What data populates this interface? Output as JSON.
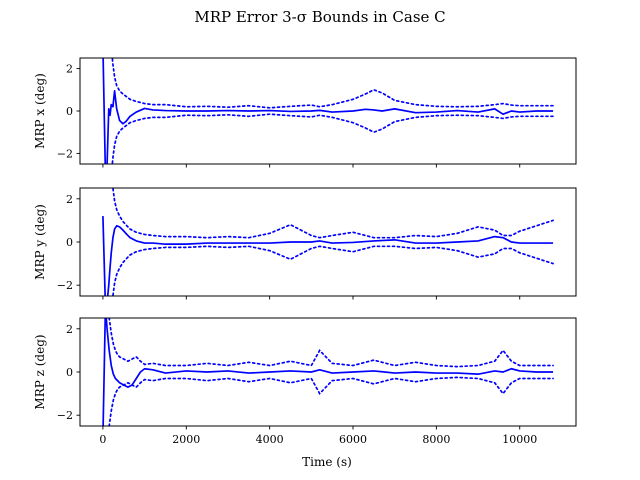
{
  "figure": {
    "title": "MRP Error 3-σ Bounds in Case C",
    "xlabel": "Time (s)",
    "line_color": "#0000ff"
  },
  "chart_data": [
    {
      "type": "line",
      "ylabel": "MRP x (deg)",
      "xlim": [
        -550,
        11350
      ],
      "ylim": [
        -2.5,
        2.5
      ],
      "xticks": [
        0,
        2000,
        4000,
        6000,
        8000,
        10000
      ],
      "yticks": [
        -2,
        0,
        2
      ],
      "grid": false,
      "x": [
        0,
        60,
        100,
        140,
        170,
        200,
        240,
        280,
        330,
        400,
        480,
        550,
        650,
        800,
        1000,
        1200,
        1500,
        2000,
        2500,
        3000,
        3500,
        4000,
        4500,
        5000,
        5200,
        5500,
        6000,
        6300,
        6500,
        6700,
        7000,
        7500,
        8000,
        8500,
        9000,
        9400,
        9600,
        9800,
        10000,
        10400,
        10800
      ],
      "series": [
        {
          "values": [
            3.0,
            -3.0,
            -2.5,
            0.1,
            -0.2,
            0.3,
            0.2,
            0.95,
            0.1,
            -0.45,
            -0.6,
            -0.5,
            -0.25,
            -0.05,
            0.12,
            0.05,
            0.02,
            0.0,
            0.0,
            0.02,
            0.0,
            0.02,
            -0.02,
            0.0,
            0.03,
            -0.05,
            0.0,
            0.08,
            0.05,
            0.0,
            0.1,
            -0.08,
            -0.05,
            0.02,
            -0.05,
            0.1,
            -0.15,
            0.0,
            -0.05,
            0.0,
            0.0
          ]
        },
        {
          "values": [
            3.0,
            3.0,
            3.0,
            3.0,
            3.0,
            3.0,
            2.2,
            1.6,
            1.2,
            0.95,
            0.8,
            0.7,
            0.55,
            0.45,
            0.35,
            0.3,
            0.3,
            0.2,
            0.22,
            0.18,
            0.25,
            0.15,
            0.22,
            0.28,
            0.2,
            0.3,
            0.55,
            0.8,
            1.0,
            0.85,
            0.5,
            0.3,
            0.22,
            0.2,
            0.22,
            0.3,
            0.35,
            0.28,
            0.25,
            0.25,
            0.25
          ]
        },
        {
          "values": [
            -3.0,
            -3.0,
            -3.0,
            -3.0,
            -3.0,
            -3.0,
            -2.2,
            -1.6,
            -1.2,
            -0.95,
            -0.8,
            -0.7,
            -0.55,
            -0.45,
            -0.35,
            -0.3,
            -0.3,
            -0.2,
            -0.22,
            -0.18,
            -0.25,
            -0.15,
            -0.22,
            -0.28,
            -0.2,
            -0.3,
            -0.55,
            -0.8,
            -1.0,
            -0.85,
            -0.5,
            -0.3,
            -0.22,
            -0.2,
            -0.22,
            -0.3,
            -0.35,
            -0.28,
            -0.25,
            -0.25,
            -0.25
          ]
        }
      ]
    },
    {
      "type": "line",
      "ylabel": "MRP y (deg)",
      "xlim": [
        -550,
        11350
      ],
      "ylim": [
        -2.5,
        2.5
      ],
      "xticks": [
        0,
        2000,
        4000,
        6000,
        8000,
        10000
      ],
      "yticks": [
        -2,
        0,
        2
      ],
      "grid": false,
      "x": [
        0,
        60,
        100,
        140,
        170,
        200,
        240,
        280,
        330,
        400,
        480,
        550,
        650,
        800,
        1000,
        1200,
        1500,
        2000,
        2500,
        3000,
        3500,
        4000,
        4500,
        5000,
        5200,
        5500,
        6000,
        6500,
        7000,
        7500,
        8000,
        8500,
        9000,
        9400,
        9600,
        9800,
        10000,
        10400,
        10800
      ],
      "series": [
        {
          "values": [
            1.2,
            -3.0,
            -2.8,
            -2.0,
            -1.2,
            -0.5,
            0.2,
            0.6,
            0.75,
            0.7,
            0.55,
            0.4,
            0.2,
            0.05,
            -0.05,
            -0.05,
            -0.1,
            -0.1,
            -0.05,
            -0.05,
            -0.05,
            -0.05,
            0.0,
            0.0,
            0.05,
            -0.05,
            -0.02,
            0.05,
            0.1,
            -0.05,
            -0.05,
            0.0,
            0.05,
            0.25,
            0.2,
            0.0,
            -0.05,
            -0.05,
            -0.05
          ]
        },
        {
          "values": [
            3.0,
            3.0,
            3.0,
            3.0,
            3.0,
            3.0,
            2.5,
            1.9,
            1.5,
            1.2,
            0.95,
            0.8,
            0.6,
            0.45,
            0.35,
            0.3,
            0.25,
            0.25,
            0.2,
            0.25,
            0.2,
            0.4,
            0.8,
            0.3,
            0.2,
            0.3,
            0.45,
            0.2,
            0.2,
            0.3,
            0.25,
            0.4,
            0.7,
            0.55,
            0.3,
            0.3,
            0.5,
            0.75,
            1.0
          ]
        },
        {
          "values": [
            -3.0,
            -3.0,
            -3.0,
            -3.0,
            -3.0,
            -3.0,
            -2.5,
            -1.9,
            -1.5,
            -1.2,
            -0.95,
            -0.8,
            -0.6,
            -0.45,
            -0.35,
            -0.3,
            -0.25,
            -0.25,
            -0.2,
            -0.25,
            -0.2,
            -0.4,
            -0.8,
            -0.3,
            -0.2,
            -0.3,
            -0.45,
            -0.2,
            -0.2,
            -0.3,
            -0.25,
            -0.4,
            -0.7,
            -0.55,
            -0.3,
            -0.3,
            -0.5,
            -0.75,
            -1.0
          ]
        }
      ]
    },
    {
      "type": "line",
      "ylabel": "MRP z (deg)",
      "xlim": [
        -550,
        11350
      ],
      "ylim": [
        -2.5,
        2.5
      ],
      "xticks": [
        0,
        2000,
        4000,
        6000,
        8000,
        10000
      ],
      "yticks": [
        -2,
        0,
        2
      ],
      "grid": false,
      "x": [
        0,
        60,
        100,
        150,
        200,
        250,
        300,
        350,
        400,
        500,
        600,
        700,
        800,
        900,
        1000,
        1200,
        1500,
        2000,
        2500,
        3000,
        3500,
        4000,
        4500,
        5000,
        5200,
        5500,
        6000,
        6500,
        7000,
        7500,
        8000,
        8500,
        9000,
        9400,
        9600,
        9800,
        10000,
        10400,
        10800
      ],
      "series": [
        {
          "values": [
            -3.0,
            3.0,
            2.0,
            1.0,
            0.3,
            -0.1,
            -0.3,
            -0.4,
            -0.5,
            -0.6,
            -0.7,
            -0.6,
            -0.3,
            0.0,
            0.15,
            0.1,
            -0.05,
            0.05,
            0.0,
            0.05,
            -0.05,
            0.0,
            0.05,
            0.0,
            0.1,
            -0.05,
            0.0,
            0.05,
            -0.05,
            0.0,
            -0.05,
            -0.05,
            -0.1,
            0.05,
            0.0,
            0.15,
            0.05,
            0.0,
            0.0
          ]
        },
        {
          "values": [
            3.0,
            3.0,
            3.0,
            2.5,
            1.8,
            1.3,
            1.0,
            0.8,
            0.7,
            0.6,
            0.5,
            0.6,
            0.7,
            0.5,
            0.35,
            0.4,
            0.3,
            0.3,
            0.4,
            0.3,
            0.45,
            0.3,
            0.5,
            0.3,
            1.0,
            0.4,
            0.3,
            0.55,
            0.3,
            0.45,
            0.3,
            0.25,
            0.3,
            0.5,
            1.0,
            0.5,
            0.3,
            0.3,
            0.3
          ]
        },
        {
          "values": [
            -3.0,
            -3.0,
            -3.0,
            -2.5,
            -1.8,
            -1.3,
            -1.0,
            -0.8,
            -0.7,
            -0.6,
            -0.5,
            -0.6,
            -0.7,
            -0.5,
            -0.35,
            -0.4,
            -0.3,
            -0.3,
            -0.4,
            -0.3,
            -0.45,
            -0.3,
            -0.5,
            -0.3,
            -1.0,
            -0.4,
            -0.3,
            -0.55,
            -0.3,
            -0.45,
            -0.3,
            -0.25,
            -0.3,
            -0.5,
            -1.0,
            -0.5,
            -0.3,
            -0.3,
            -0.3
          ]
        }
      ]
    }
  ]
}
